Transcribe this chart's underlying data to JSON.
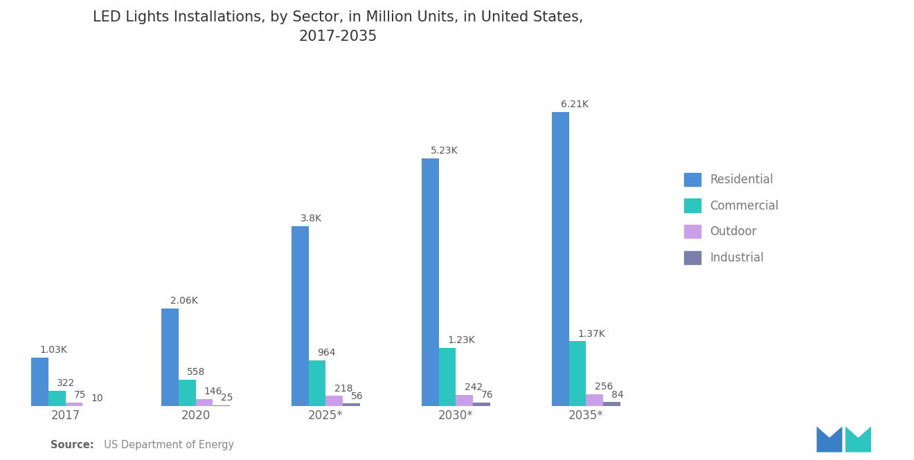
{
  "title": "LED Lights Installations, by Sector, in Million Units, in United States,\n2017-2035",
  "categories": [
    "2017",
    "2020",
    "2025*",
    "2030*",
    "2035*"
  ],
  "series": {
    "Residential": [
      1030,
      2060,
      3800,
      5230,
      6210
    ],
    "Commercial": [
      322,
      558,
      964,
      1230,
      1370
    ],
    "Outdoor": [
      75,
      146,
      218,
      242,
      256
    ],
    "Industrial": [
      10,
      25,
      56,
      76,
      84
    ]
  },
  "colors": {
    "Residential": "#4D8FD6",
    "Commercial": "#2DC5C0",
    "Outdoor": "#C9A0E8",
    "Industrial": "#7B7FAA"
  },
  "bar_labels": {
    "Residential": [
      "1.03K",
      "2.06K",
      "3.8K",
      "5.23K",
      "6.21K"
    ],
    "Commercial": [
      "322",
      "558",
      "964",
      "1.23K",
      "1.37K"
    ],
    "Outdoor": [
      "75",
      "146",
      "218",
      "242",
      "256"
    ],
    "Industrial": [
      "10",
      "25",
      "56",
      "76",
      "84"
    ]
  },
  "source_bold": "Source:",
  "source_rest": "  US Department of Energy",
  "background_color": "#FFFFFF",
  "ylim": [
    0,
    7200
  ],
  "bar_width": 0.17,
  "title_fontsize": 15,
  "label_fontsize": 10,
  "tick_fontsize": 12,
  "legend_fontsize": 12,
  "source_fontsize": 10.5,
  "label_color": "#555555"
}
